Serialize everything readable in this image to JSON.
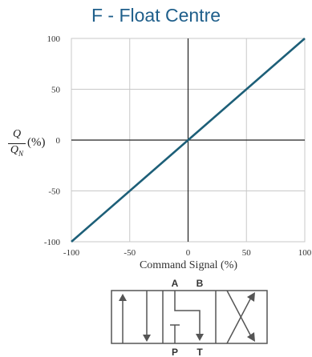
{
  "chart_data": {
    "type": "line",
    "title": "F - Float Centre",
    "xlabel": "Command Signal (%)",
    "ylabel": "Q/QN (%)",
    "ylabel_parts": {
      "numerator": "Q",
      "denominator": "Q",
      "subscript": "N",
      "unit": "(%)"
    },
    "xlim": [
      -100,
      100
    ],
    "ylim": [
      -100,
      100
    ],
    "x_ticks": [
      -100,
      -50,
      0,
      50,
      100
    ],
    "y_ticks": [
      -100,
      -50,
      0,
      50,
      100
    ],
    "grid": true,
    "series": [
      {
        "x": [
          -100,
          100
        ],
        "y": [
          -100,
          100
        ],
        "color": "#1d5f78"
      }
    ]
  },
  "valve_symbol": {
    "ports_top": [
      "A",
      "B"
    ],
    "ports_bottom": [
      "P",
      "T"
    ]
  },
  "colors": {
    "title": "#1f5f8b",
    "line": "#1d5f78",
    "grid": "#c8c8c8"
  }
}
